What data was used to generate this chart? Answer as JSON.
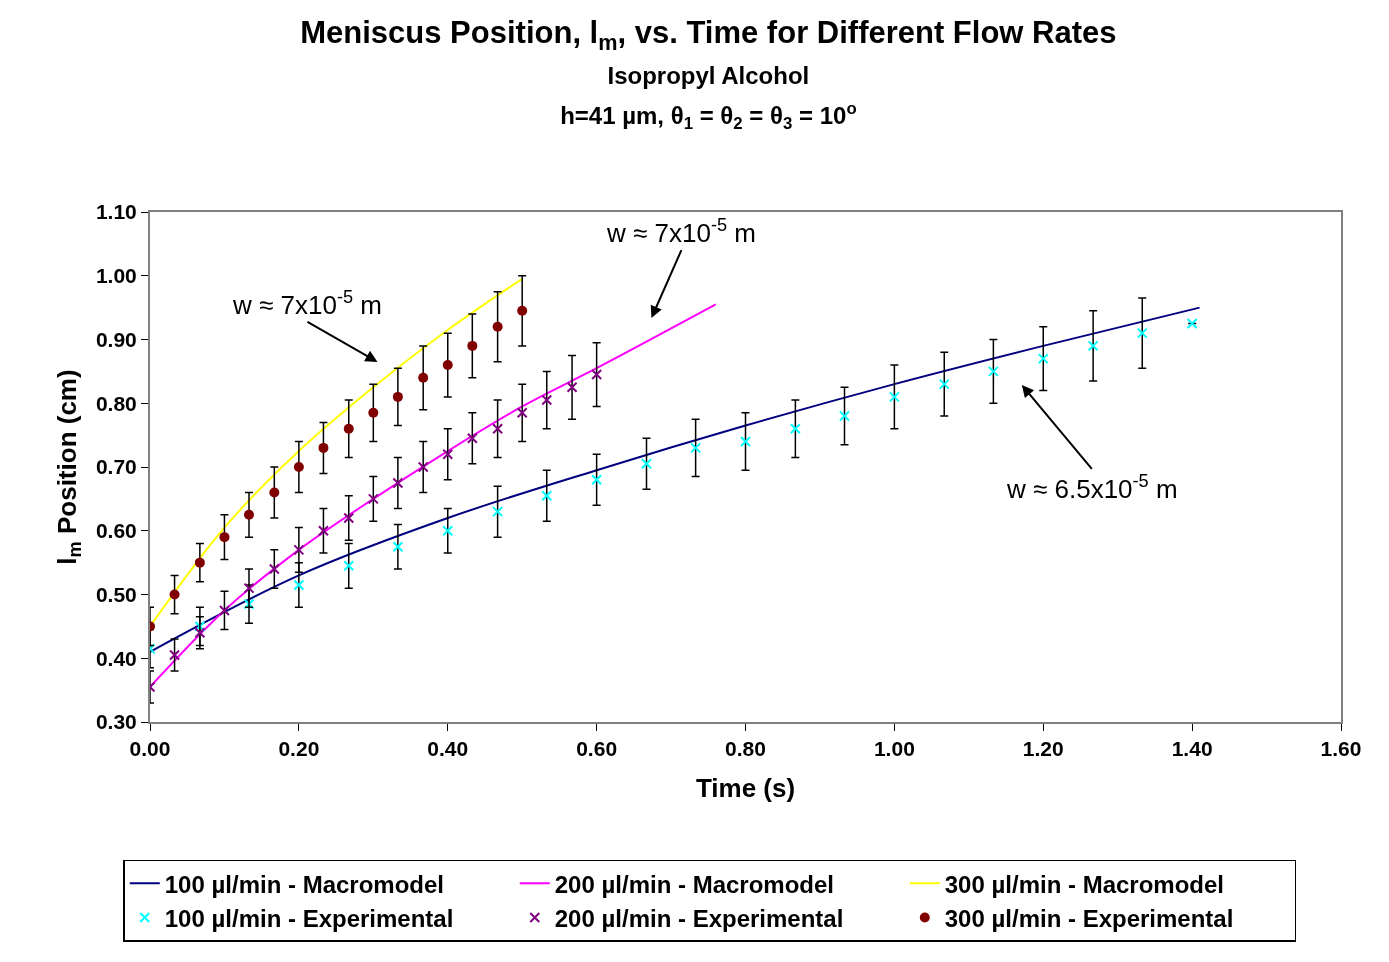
{
  "chart_data": {
    "type": "line",
    "title": "Meniscus Position, l$_{m}$, vs. Time for Different Flow Rates",
    "subtitle": "Isopropyl Alcohol\nh=41 µm, θ$_{1}$ = θ$_{2}$ = θ$_{3}$ = 10$^{o}$",
    "xlabel": "Time (s)",
    "ylabel": "l$_{m}$ Position (cm)",
    "xlim": [
      0,
      1.6
    ],
    "xticks": [
      {
        "value": 0,
        "label": "0.00"
      },
      {
        "value": 0.2,
        "label": "0.20"
      },
      {
        "value": 0.4,
        "label": "0.40"
      },
      {
        "value": 0.6,
        "label": "0.60"
      },
      {
        "value": 0.8,
        "label": "0.80"
      },
      {
        "value": 1.0,
        "label": "1.00"
      },
      {
        "value": 1.2,
        "label": "1.20"
      },
      {
        "value": 1.4,
        "label": "1.40"
      },
      {
        "value": 1.6,
        "label": "1.60"
      }
    ],
    "ylim": [
      0.3,
      1.1
    ],
    "yticks": [
      {
        "value": 0.3,
        "label": "0.30"
      },
      {
        "value": 0.4,
        "label": "0.40"
      },
      {
        "value": 0.5,
        "label": "0.50"
      },
      {
        "value": 0.6,
        "label": "0.60"
      },
      {
        "value": 0.7,
        "label": "0.70"
      },
      {
        "value": 0.8,
        "label": "0.80"
      },
      {
        "value": 0.9,
        "label": "0.90"
      },
      {
        "value": 1.0,
        "label": "1.00"
      },
      {
        "value": 1.1,
        "label": "1.10"
      }
    ],
    "legend": "bottom",
    "series": [
      {
        "name": "100 µl/min - Macromodel",
        "color": "#000080",
        "marker": "none",
        "x": [
          0,
          0.2,
          0.4,
          0.6,
          0.8,
          1.0,
          1.2,
          1.41
        ],
        "values": [
          0.41,
          0.53,
          0.62,
          0.695,
          0.765,
          0.83,
          0.89,
          0.95
        ]
      },
      {
        "name": "200 µl/min - Macromodel",
        "color": "#ff00ff",
        "marker": "none",
        "x": [
          0,
          0.1,
          0.2,
          0.3,
          0.4,
          0.5,
          0.6,
          0.76
        ],
        "values": [
          0.355,
          0.475,
          0.57,
          0.65,
          0.725,
          0.795,
          0.855,
          0.955
        ]
      },
      {
        "name": "300 µl/min - Macromodel",
        "color": "#ffff00",
        "marker": "none",
        "x": [
          0,
          0.1,
          0.2,
          0.3,
          0.4,
          0.5
        ],
        "values": [
          0.45,
          0.605,
          0.725,
          0.825,
          0.915,
          0.995
        ]
      },
      {
        "name": "100 µl/min - Experimental",
        "type": "scatter",
        "color": "#00ffff",
        "marker": "cross",
        "x": [
          0,
          0.067,
          0.133,
          0.2,
          0.267,
          0.333,
          0.4,
          0.467,
          0.533,
          0.6,
          0.667,
          0.733,
          0.8,
          0.867,
          0.933,
          1.0,
          1.067,
          1.133,
          1.2,
          1.267,
          1.333,
          1.4
        ],
        "values": [
          0.415,
          0.45,
          0.485,
          0.515,
          0.545,
          0.575,
          0.6,
          0.63,
          0.655,
          0.68,
          0.705,
          0.73,
          0.74,
          0.76,
          0.78,
          0.81,
          0.83,
          0.85,
          0.87,
          0.89,
          0.91,
          0.925
        ],
        "errors": [
          0.03,
          0.03,
          0.03,
          0.035,
          0.035,
          0.035,
          0.035,
          0.04,
          0.04,
          0.04,
          0.04,
          0.045,
          0.045,
          0.045,
          0.045,
          0.05,
          0.05,
          0.05,
          0.05,
          0.055,
          0.055,
          null
        ]
      },
      {
        "name": "200 µl/min - Experimental",
        "type": "scatter",
        "color": "#800080",
        "marker": "cross",
        "x": [
          0,
          0.033,
          0.067,
          0.1,
          0.133,
          0.167,
          0.2,
          0.233,
          0.267,
          0.3,
          0.333,
          0.367,
          0.4,
          0.433,
          0.467,
          0.5,
          0.533,
          0.567,
          0.6
        ],
        "values": [
          0.355,
          0.405,
          0.44,
          0.475,
          0.51,
          0.54,
          0.57,
          0.6,
          0.62,
          0.65,
          0.675,
          0.7,
          0.72,
          0.745,
          0.76,
          0.785,
          0.805,
          0.825,
          0.845
        ],
        "errors": [
          0.025,
          0.025,
          0.025,
          0.03,
          0.03,
          0.03,
          0.035,
          0.035,
          0.035,
          0.035,
          0.04,
          0.04,
          0.04,
          0.04,
          0.045,
          0.045,
          0.045,
          0.05,
          0.05
        ]
      },
      {
        "name": "300 µl/min - Experimental",
        "type": "scatter",
        "color": "#800000",
        "marker": "circle",
        "x": [
          0,
          0.033,
          0.067,
          0.1,
          0.133,
          0.167,
          0.2,
          0.233,
          0.267,
          0.3,
          0.333,
          0.367,
          0.4,
          0.433,
          0.467,
          0.5
        ],
        "values": [
          0.45,
          0.5,
          0.55,
          0.59,
          0.625,
          0.66,
          0.7,
          0.73,
          0.76,
          0.785,
          0.81,
          0.84,
          0.86,
          0.89,
          0.92,
          0.945
        ],
        "errors": [
          0.03,
          0.03,
          0.03,
          0.035,
          0.035,
          0.04,
          0.04,
          0.04,
          0.045,
          0.045,
          0.045,
          0.05,
          0.05,
          0.05,
          0.055,
          0.055
        ]
      }
    ],
    "annotations": [
      "w ≈ 7x10$^{-5}$ m",
      "w ≈ 7x10$^{-5}$ m",
      "w ≈ 6.5x10$^{-5}$ m"
    ]
  }
}
